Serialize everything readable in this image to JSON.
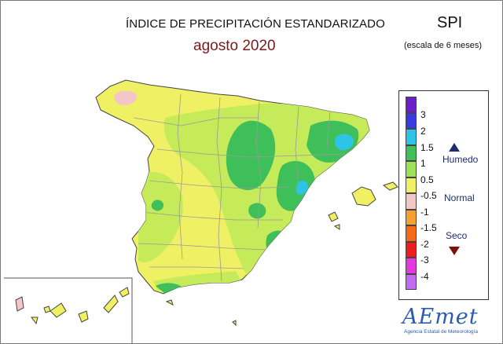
{
  "header": {
    "title": "ÍNDICE DE PRECIPITACIÓN ESTANDARIZADO",
    "subtitle": "agosto 2020",
    "index_name": "SPI",
    "scale_note": "(escala de 6 meses)"
  },
  "legend": {
    "ticks": [
      "3",
      "2",
      "1.5",
      "1",
      "0.5",
      "-0.5",
      "-1",
      "-1.5",
      "-2",
      "-3",
      "-4"
    ],
    "classes": [
      {
        "color": "#6a1fc8"
      },
      {
        "color": "#3a3ae0"
      },
      {
        "color": "#2ec4e6"
      },
      {
        "color": "#3fbf5a"
      },
      {
        "color": "#9ee05a"
      },
      {
        "color": "#f0f065"
      },
      {
        "color": "#f4c7c7"
      },
      {
        "color": "#f5a030"
      },
      {
        "color": "#f56a18"
      },
      {
        "color": "#ee1c1c"
      },
      {
        "color": "#e23ae0"
      },
      {
        "color": "#c46cf0"
      }
    ],
    "humid_label": "Humedo",
    "normal_label": "Normal",
    "dry_label": "Seco",
    "humid_icon": "triangle-up-icon",
    "dry_icon": "triangle-down-icon"
  },
  "logo": {
    "name": "AEmet",
    "subtitle": "Agencia Estatal de Meteorología"
  }
}
